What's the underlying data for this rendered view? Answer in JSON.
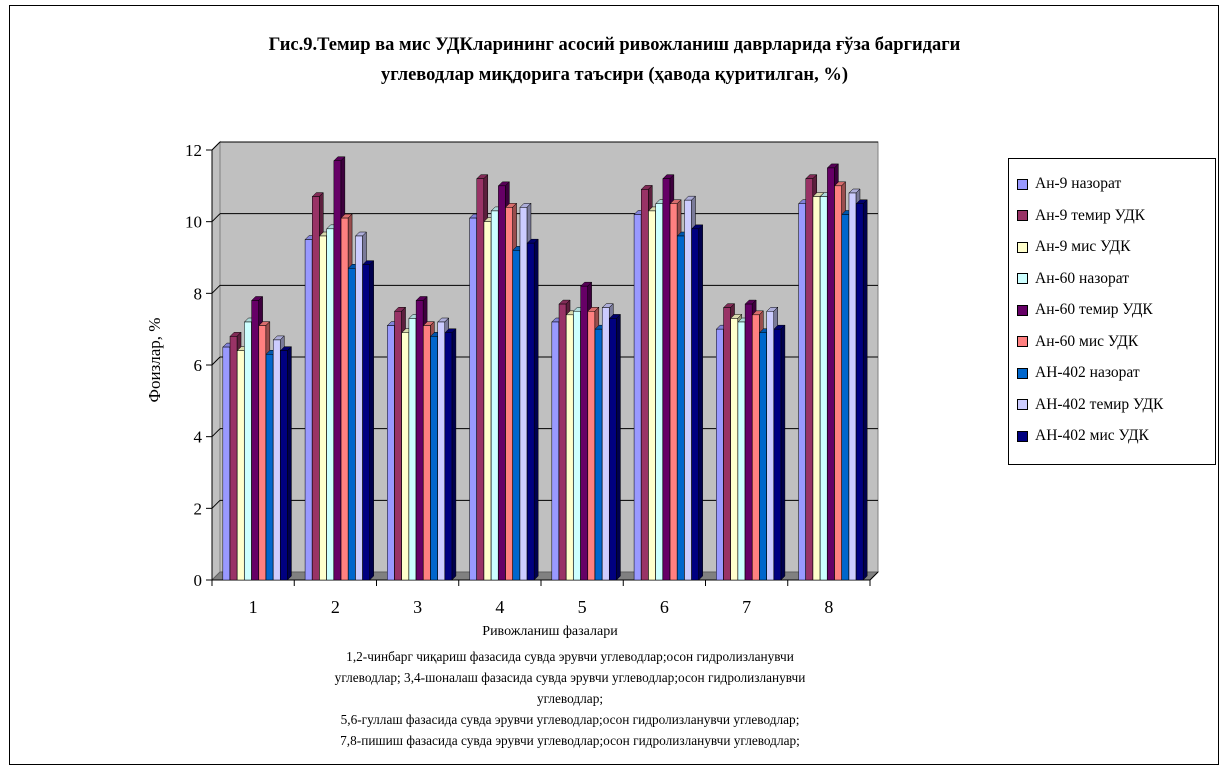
{
  "chart_data": {
    "type": "bar",
    "title_lines": [
      "Гис.9.Темир ва мис УДКларининг асосий ривожланиш даврларида ғўза баргидаги",
      "углеводлар миқдорига таъсири  (ҳавода қуритилган, %)"
    ],
    "xlabel": "Ривожланиш фазалари",
    "ylabel": "Фоизлар, %",
    "ylim": [
      0,
      12
    ],
    "yticks": [
      "0",
      "2",
      "4",
      "6",
      "8",
      "10",
      "12"
    ],
    "categories": [
      "1",
      "2",
      "3",
      "4",
      "5",
      "6",
      "7",
      "8"
    ],
    "legend_position": "right",
    "grid": true,
    "series": [
      {
        "name": "Ан-9 назорат",
        "color": "#9999ff",
        "values": [
          6.5,
          9.5,
          7.1,
          10.1,
          7.2,
          10.2,
          7.0,
          10.5
        ]
      },
      {
        "name": "Ан-9 темир УДК",
        "color": "#993366",
        "values": [
          6.8,
          10.7,
          7.5,
          11.2,
          7.7,
          10.9,
          7.6,
          11.2
        ]
      },
      {
        "name": "Ан-9 мис УДК",
        "color": "#ffffcc",
        "values": [
          6.4,
          9.6,
          6.9,
          10.0,
          7.4,
          10.3,
          7.3,
          10.7
        ]
      },
      {
        "name": "Ан-60 назорат",
        "color": "#ccffff",
        "values": [
          7.2,
          9.8,
          7.3,
          10.3,
          7.5,
          10.5,
          7.2,
          10.7
        ]
      },
      {
        "name": "Ан-60 темир УДК",
        "color": "#660066",
        "values": [
          7.8,
          11.7,
          7.8,
          11.0,
          8.2,
          11.2,
          7.7,
          11.5
        ]
      },
      {
        "name": "Ан-60 мис УДК",
        "color": "#ff8080",
        "values": [
          7.1,
          10.1,
          7.1,
          10.4,
          7.5,
          10.5,
          7.4,
          11.0
        ]
      },
      {
        "name": "АН-402 назорат",
        "color": "#0066cc",
        "values": [
          6.3,
          8.7,
          6.8,
          9.2,
          7.0,
          9.6,
          6.9,
          10.2
        ]
      },
      {
        "name": "АН-402 темир УДК",
        "color": "#ccccff",
        "values": [
          6.7,
          9.6,
          7.2,
          10.4,
          7.6,
          10.6,
          7.5,
          10.8
        ]
      },
      {
        "name": "АН-402 мис УДК",
        "color": "#000080",
        "values": [
          6.4,
          8.8,
          6.9,
          9.4,
          7.3,
          9.8,
          7.0,
          10.5
        ]
      }
    ],
    "notes": [
      "1,2-чинбарг чиқариш фазасида сувда эрувчи углеводлар;осон гидролизланувчи",
      "углеводлар; 3,4-шоналаш фазасида сувда эрувчи углеводлар;осон гидролизланувчи",
      "углеводлар;",
      "5,6-гуллаш фазасида сувда эрувчи углеводлар;осон гидролизланувчи углеводлар;",
      "7,8-пишиш фазасида сувда эрувчи углеводлар;осон гидролизланувчи углеводлар;"
    ]
  }
}
